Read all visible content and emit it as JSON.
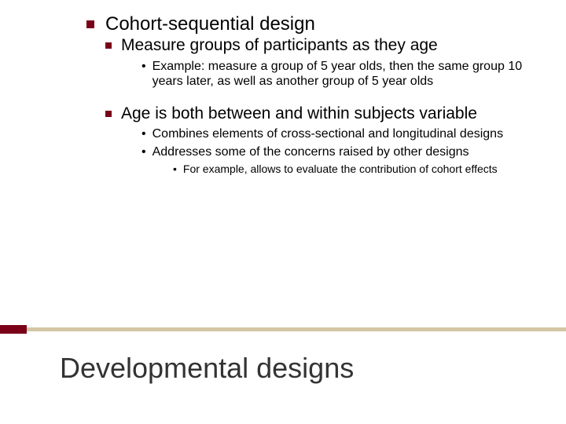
{
  "colors": {
    "accent": "#7a0019",
    "divider": "#d4c6a4",
    "title_text": "#333333",
    "body_text": "#000000",
    "background": "#ffffff"
  },
  "typography": {
    "family": "Arial",
    "l1_fontsize": 24,
    "l2_fontsize": 21,
    "l3_fontsize": 16,
    "l4_fontsize": 14,
    "title_fontsize": 36
  },
  "slide": {
    "title": "Developmental designs",
    "l1": {
      "text": "Cohort-sequential design"
    },
    "l2a": {
      "text": "Measure groups of participants as they age"
    },
    "l3a": {
      "text": "Example: measure a group of 5 year olds, then the same group 10 years later, as well as another group of 5 year olds"
    },
    "l2b": {
      "text": "Age is both between and within subjects variable"
    },
    "l3b": {
      "text": "Combines elements of cross-sectional and longitudinal designs"
    },
    "l3c": {
      "text": "Addresses some of the concerns raised by other designs"
    },
    "l4a": {
      "text": "For example, allows to evaluate the contribution of cohort effects"
    }
  }
}
